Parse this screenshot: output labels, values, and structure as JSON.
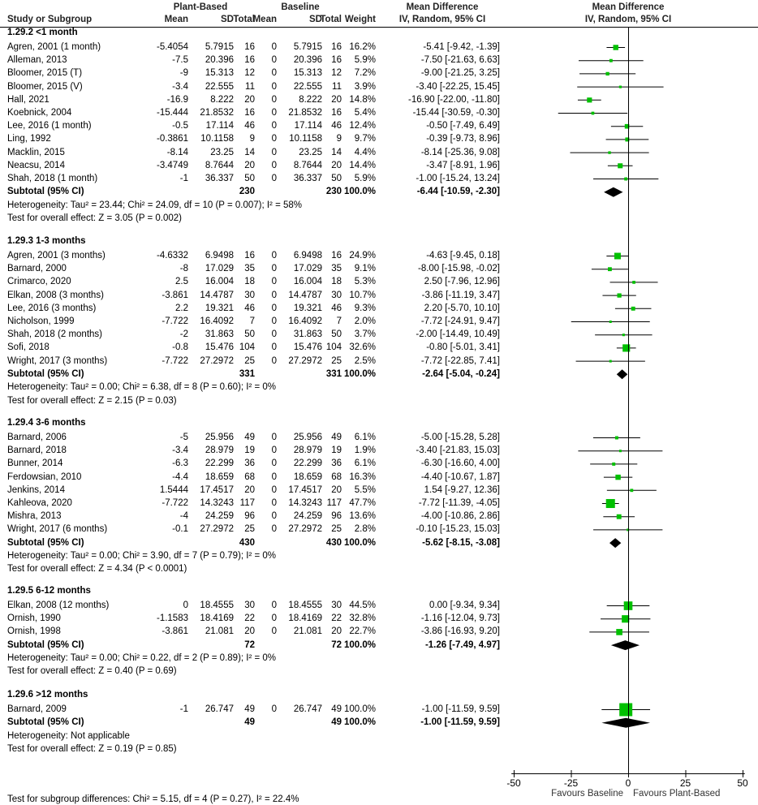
{
  "header": {
    "group1": "Plant-Based",
    "group2": "Baseline",
    "effect_title": "Mean Difference",
    "effect_method": "IV, Random, 95% CI",
    "plot_title": "Mean Difference",
    "plot_method": "IV, Random, 95% CI",
    "col_study": "Study or Subgroup",
    "col_mean1": "Mean",
    "col_sd1": "SD",
    "col_total1": "Total",
    "col_mean2": "Mean",
    "col_sd2": "SD",
    "col_total2": "Total",
    "col_weight": "Weight"
  },
  "chart_data": {
    "type": "forest",
    "xlim": [
      -50,
      50
    ],
    "xticks": [
      "-50",
      "-25",
      "0",
      "25",
      "50"
    ],
    "xtick_values": [
      -50,
      -25,
      0,
      25,
      50
    ],
    "label_left": "Favours Baseline",
    "label_right": "Favours Plant-Based",
    "colors": {
      "square": "#00c000",
      "diamond": "#000000",
      "lines": "#000000"
    },
    "subgroups": [
      {
        "title": "1.29.2 <1 month",
        "studies": [
          {
            "name": "Agren, 2001 (1 month)",
            "mean1": "-5.4054",
            "sd1": "5.7915",
            "n1": "16",
            "mean2": "0",
            "sd2": "5.7915",
            "n2": "16",
            "weight": "16.2%",
            "ci": "-5.41 [-9.42, -1.39]",
            "md": -5.41,
            "lo": -9.42,
            "hi": -1.39,
            "w": 16.2
          },
          {
            "name": "Alleman, 2013",
            "mean1": "-7.5",
            "sd1": "20.396",
            "n1": "16",
            "mean2": "0",
            "sd2": "20.396",
            "n2": "16",
            "weight": "5.9%",
            "ci": "-7.50 [-21.63, 6.63]",
            "md": -7.5,
            "lo": -21.63,
            "hi": 6.63,
            "w": 5.9
          },
          {
            "name": "Bloomer, 2015 (T)",
            "mean1": "-9",
            "sd1": "15.313",
            "n1": "12",
            "mean2": "0",
            "sd2": "15.313",
            "n2": "12",
            "weight": "7.2%",
            "ci": "-9.00 [-21.25, 3.25]",
            "md": -9,
            "lo": -21.25,
            "hi": 3.25,
            "w": 7.2
          },
          {
            "name": "Bloomer, 2015 (V)",
            "mean1": "-3.4",
            "sd1": "22.555",
            "n1": "11",
            "mean2": "0",
            "sd2": "22.555",
            "n2": "11",
            "weight": "3.9%",
            "ci": "-3.40 [-22.25, 15.45]",
            "md": -3.4,
            "lo": -22.25,
            "hi": 15.45,
            "w": 3.9
          },
          {
            "name": "Hall, 2021",
            "mean1": "-16.9",
            "sd1": "8.222",
            "n1": "20",
            "mean2": "0",
            "sd2": "8.222",
            "n2": "20",
            "weight": "14.8%",
            "ci": "-16.90 [-22.00, -11.80]",
            "md": -16.9,
            "lo": -22,
            "hi": -11.8,
            "w": 14.8
          },
          {
            "name": "Koebnick, 2004",
            "mean1": "-15.444",
            "sd1": "21.8532",
            "n1": "16",
            "mean2": "0",
            "sd2": "21.8532",
            "n2": "16",
            "weight": "5.4%",
            "ci": "-15.44 [-30.59, -0.30]",
            "md": -15.44,
            "lo": -30.59,
            "hi": -0.3,
            "w": 5.4
          },
          {
            "name": "Lee, 2016 (1 month)",
            "mean1": "-0.5",
            "sd1": "17.114",
            "n1": "46",
            "mean2": "0",
            "sd2": "17.114",
            "n2": "46",
            "weight": "12.4%",
            "ci": "-0.50 [-7.49, 6.49]",
            "md": -0.5,
            "lo": -7.49,
            "hi": 6.49,
            "w": 12.4
          },
          {
            "name": "Ling, 1992",
            "mean1": "-0.3861",
            "sd1": "10.1158",
            "n1": "9",
            "mean2": "0",
            "sd2": "10.1158",
            "n2": "9",
            "weight": "9.7%",
            "ci": "-0.39 [-9.73, 8.96]",
            "md": -0.39,
            "lo": -9.73,
            "hi": 8.96,
            "w": 9.7
          },
          {
            "name": "Macklin, 2015",
            "mean1": "-8.14",
            "sd1": "23.25",
            "n1": "14",
            "mean2": "0",
            "sd2": "23.25",
            "n2": "14",
            "weight": "4.4%",
            "ci": "-8.14 [-25.36, 9.08]",
            "md": -8.14,
            "lo": -25.36,
            "hi": 9.08,
            "w": 4.4
          },
          {
            "name": "Neacsu, 2014",
            "mean1": "-3.4749",
            "sd1": "8.7644",
            "n1": "20",
            "mean2": "0",
            "sd2": "8.7644",
            "n2": "20",
            "weight": "14.4%",
            "ci": "-3.47 [-8.91, 1.96]",
            "md": -3.47,
            "lo": -8.91,
            "hi": 1.96,
            "w": 14.4
          },
          {
            "name": "Shah, 2018 (1 month)",
            "mean1": "-1",
            "sd1": "36.337",
            "n1": "50",
            "mean2": "0",
            "sd2": "36.337",
            "n2": "50",
            "weight": "5.9%",
            "ci": "-1.00 [-15.24, 13.24]",
            "md": -1,
            "lo": -15.24,
            "hi": 13.24,
            "w": 5.9
          }
        ],
        "subtotal": {
          "label": "Subtotal (95% CI)",
          "n1": "230",
          "n2": "230",
          "weight": "100.0%",
          "ci": "-6.44 [-10.59, -2.30]",
          "md": -6.44,
          "lo": -10.59,
          "hi": -2.3
        },
        "heterogeneity": "Heterogeneity: Tau² = 23.44; Chi² = 24.09, df = 10 (P = 0.007); I² = 58%",
        "overall": "Test for overall effect: Z = 3.05 (P = 0.002)"
      },
      {
        "title": "1.29.3 1-3 months",
        "studies": [
          {
            "name": "Agren, 2001 (3 months)",
            "mean1": "-4.6332",
            "sd1": "6.9498",
            "n1": "16",
            "mean2": "0",
            "sd2": "6.9498",
            "n2": "16",
            "weight": "24.9%",
            "ci": "-4.63 [-9.45, 0.18]",
            "md": -4.63,
            "lo": -9.45,
            "hi": 0.18,
            "w": 24.9
          },
          {
            "name": "Barnard, 2000",
            "mean1": "-8",
            "sd1": "17.029",
            "n1": "35",
            "mean2": "0",
            "sd2": "17.029",
            "n2": "35",
            "weight": "9.1%",
            "ci": "-8.00 [-15.98, -0.02]",
            "md": -8,
            "lo": -15.98,
            "hi": -0.02,
            "w": 9.1
          },
          {
            "name": "Crimarco, 2020",
            "mean1": "2.5",
            "sd1": "16.004",
            "n1": "18",
            "mean2": "0",
            "sd2": "16.004",
            "n2": "18",
            "weight": "5.3%",
            "ci": "2.50 [-7.96, 12.96]",
            "md": 2.5,
            "lo": -7.96,
            "hi": 12.96,
            "w": 5.3
          },
          {
            "name": "Elkan, 2008 (3 months)",
            "mean1": "-3.861",
            "sd1": "14.4787",
            "n1": "30",
            "mean2": "0",
            "sd2": "14.4787",
            "n2": "30",
            "weight": "10.7%",
            "ci": "-3.86 [-11.19, 3.47]",
            "md": -3.86,
            "lo": -11.19,
            "hi": 3.47,
            "w": 10.7
          },
          {
            "name": "Lee, 2016 (3 months)",
            "mean1": "2.2",
            "sd1": "19.321",
            "n1": "46",
            "mean2": "0",
            "sd2": "19.321",
            "n2": "46",
            "weight": "9.3%",
            "ci": "2.20 [-5.70, 10.10]",
            "md": 2.2,
            "lo": -5.7,
            "hi": 10.1,
            "w": 9.3
          },
          {
            "name": "Nicholson, 1999",
            "mean1": "-7.722",
            "sd1": "16.4092",
            "n1": "7",
            "mean2": "0",
            "sd2": "16.4092",
            "n2": "7",
            "weight": "2.0%",
            "ci": "-7.72 [-24.91, 9.47]",
            "md": -7.72,
            "lo": -24.91,
            "hi": 9.47,
            "w": 2.0
          },
          {
            "name": "Shah, 2018 (2 months)",
            "mean1": "-2",
            "sd1": "31.863",
            "n1": "50",
            "mean2": "0",
            "sd2": "31.863",
            "n2": "50",
            "weight": "3.7%",
            "ci": "-2.00 [-14.49, 10.49]",
            "md": -2,
            "lo": -14.49,
            "hi": 10.49,
            "w": 3.7
          },
          {
            "name": "Sofi, 2018",
            "mean1": "-0.8",
            "sd1": "15.476",
            "n1": "104",
            "mean2": "0",
            "sd2": "15.476",
            "n2": "104",
            "weight": "32.6%",
            "ci": "-0.80 [-5.01, 3.41]",
            "md": -0.8,
            "lo": -5.01,
            "hi": 3.41,
            "w": 32.6
          },
          {
            "name": "Wright, 2017 (3 months)",
            "mean1": "-7.722",
            "sd1": "27.2972",
            "n1": "25",
            "mean2": "0",
            "sd2": "27.2972",
            "n2": "25",
            "weight": "2.5%",
            "ci": "-7.72 [-22.85, 7.41]",
            "md": -7.72,
            "lo": -22.85,
            "hi": 7.41,
            "w": 2.5
          }
        ],
        "subtotal": {
          "label": "Subtotal (95% CI)",
          "n1": "331",
          "n2": "331",
          "weight": "100.0%",
          "ci": "-2.64 [-5.04, -0.24]",
          "md": -2.64,
          "lo": -5.04,
          "hi": -0.24
        },
        "heterogeneity": "Heterogeneity: Tau² = 0.00; Chi² = 6.38, df = 8 (P = 0.60); I² = 0%",
        "overall": "Test for overall effect: Z = 2.15 (P = 0.03)"
      },
      {
        "title": "1.29.4 3-6 months",
        "studies": [
          {
            "name": "Barnard, 2006",
            "mean1": "-5",
            "sd1": "25.956",
            "n1": "49",
            "mean2": "0",
            "sd2": "25.956",
            "n2": "49",
            "weight": "6.1%",
            "ci": "-5.00 [-15.28, 5.28]",
            "md": -5,
            "lo": -15.28,
            "hi": 5.28,
            "w": 6.1
          },
          {
            "name": "Barnard, 2018",
            "mean1": "-3.4",
            "sd1": "28.979",
            "n1": "19",
            "mean2": "0",
            "sd2": "28.979",
            "n2": "19",
            "weight": "1.9%",
            "ci": "-3.40 [-21.83, 15.03]",
            "md": -3.4,
            "lo": -21.83,
            "hi": 15.03,
            "w": 1.9
          },
          {
            "name": "Bunner, 2014",
            "mean1": "-6.3",
            "sd1": "22.299",
            "n1": "36",
            "mean2": "0",
            "sd2": "22.299",
            "n2": "36",
            "weight": "6.1%",
            "ci": "-6.30 [-16.60, 4.00]",
            "md": -6.3,
            "lo": -16.6,
            "hi": 4,
            "w": 6.1
          },
          {
            "name": "Ferdowsian, 2010",
            "mean1": "-4.4",
            "sd1": "18.659",
            "n1": "68",
            "mean2": "0",
            "sd2": "18.659",
            "n2": "68",
            "weight": "16.3%",
            "ci": "-4.40 [-10.67, 1.87]",
            "md": -4.4,
            "lo": -10.67,
            "hi": 1.87,
            "w": 16.3
          },
          {
            "name": "Jenkins, 2014",
            "mean1": "1.5444",
            "sd1": "17.4517",
            "n1": "20",
            "mean2": "0",
            "sd2": "17.4517",
            "n2": "20",
            "weight": "5.5%",
            "ci": "1.54 [-9.27, 12.36]",
            "md": 1.54,
            "lo": -9.27,
            "hi": 12.36,
            "w": 5.5
          },
          {
            "name": "Kahleova, 2020",
            "mean1": "-7.722",
            "sd1": "14.3243",
            "n1": "117",
            "mean2": "0",
            "sd2": "14.3243",
            "n2": "117",
            "weight": "47.7%",
            "ci": "-7.72 [-11.39, -4.05]",
            "md": -7.72,
            "lo": -11.39,
            "hi": -4.05,
            "w": 47.7
          },
          {
            "name": "Mishra, 2013",
            "mean1": "-4",
            "sd1": "24.259",
            "n1": "96",
            "mean2": "0",
            "sd2": "24.259",
            "n2": "96",
            "weight": "13.6%",
            "ci": "-4.00 [-10.86, 2.86]",
            "md": -4,
            "lo": -10.86,
            "hi": 2.86,
            "w": 13.6
          },
          {
            "name": "Wright, 2017 (6 months)",
            "mean1": "-0.1",
            "sd1": "27.2972",
            "n1": "25",
            "mean2": "0",
            "sd2": "27.2972",
            "n2": "25",
            "weight": "2.8%",
            "ci": "-0.10 [-15.23, 15.03]",
            "md": -0.1,
            "lo": -15.23,
            "hi": 15.03,
            "w": 2.8
          }
        ],
        "subtotal": {
          "label": "Subtotal (95% CI)",
          "n1": "430",
          "n2": "430",
          "weight": "100.0%",
          "ci": "-5.62 [-8.15, -3.08]",
          "md": -5.62,
          "lo": -8.15,
          "hi": -3.08
        },
        "heterogeneity": "Heterogeneity: Tau² = 0.00; Chi² = 3.90, df = 7 (P = 0.79); I² = 0%",
        "overall": "Test for overall effect: Z = 4.34 (P < 0.0001)"
      },
      {
        "title": "1.29.5 6-12 months",
        "studies": [
          {
            "name": "Elkan, 2008 (12 months)",
            "mean1": "0",
            "sd1": "18.4555",
            "n1": "30",
            "mean2": "0",
            "sd2": "18.4555",
            "n2": "30",
            "weight": "44.5%",
            "ci": "0.00 [-9.34, 9.34]",
            "md": 0,
            "lo": -9.34,
            "hi": 9.34,
            "w": 44.5
          },
          {
            "name": "Ornish, 1990",
            "mean1": "-1.1583",
            "sd1": "18.4169",
            "n1": "22",
            "mean2": "0",
            "sd2": "18.4169",
            "n2": "22",
            "weight": "32.8%",
            "ci": "-1.16 [-12.04, 9.73]",
            "md": -1.16,
            "lo": -12.04,
            "hi": 9.73,
            "w": 32.8
          },
          {
            "name": "Ornish, 1998",
            "mean1": "-3.861",
            "sd1": "21.081",
            "n1": "20",
            "mean2": "0",
            "sd2": "21.081",
            "n2": "20",
            "weight": "22.7%",
            "ci": "-3.86 [-16.93, 9.20]",
            "md": -3.86,
            "lo": -16.93,
            "hi": 9.2,
            "w": 22.7
          }
        ],
        "subtotal": {
          "label": "Subtotal (95% CI)",
          "n1": "72",
          "n2": "72",
          "weight": "100.0%",
          "ci": "-1.26 [-7.49, 4.97]",
          "md": -1.26,
          "lo": -7.49,
          "hi": 4.97
        },
        "heterogeneity": "Heterogeneity: Tau² = 0.00; Chi² = 0.22, df = 2 (P = 0.89); I² = 0%",
        "overall": "Test for overall effect: Z = 0.40 (P = 0.69)"
      },
      {
        "title": "1.29.6 >12 months",
        "studies": [
          {
            "name": "Barnard, 2009",
            "mean1": "-1",
            "sd1": "26.747",
            "n1": "49",
            "mean2": "0",
            "sd2": "26.747",
            "n2": "49",
            "weight": "100.0%",
            "ci": "-1.00 [-11.59, 9.59]",
            "md": -1,
            "lo": -11.59,
            "hi": 9.59,
            "w": 100
          }
        ],
        "subtotal": {
          "label": "Subtotal (95% CI)",
          "n1": "49",
          "n2": "49",
          "weight": "100.0%",
          "ci": "-1.00 [-11.59, 9.59]",
          "md": -1,
          "lo": -11.59,
          "hi": 9.59
        },
        "heterogeneity": "Heterogeneity: Not applicable",
        "overall": "Test for overall effect: Z = 0.19 (P = 0.85)"
      }
    ],
    "subgroup_test": "Test for subgroup differences: Chi² = 5.15, df = 4 (P = 0.27), I² = 22.4%"
  }
}
